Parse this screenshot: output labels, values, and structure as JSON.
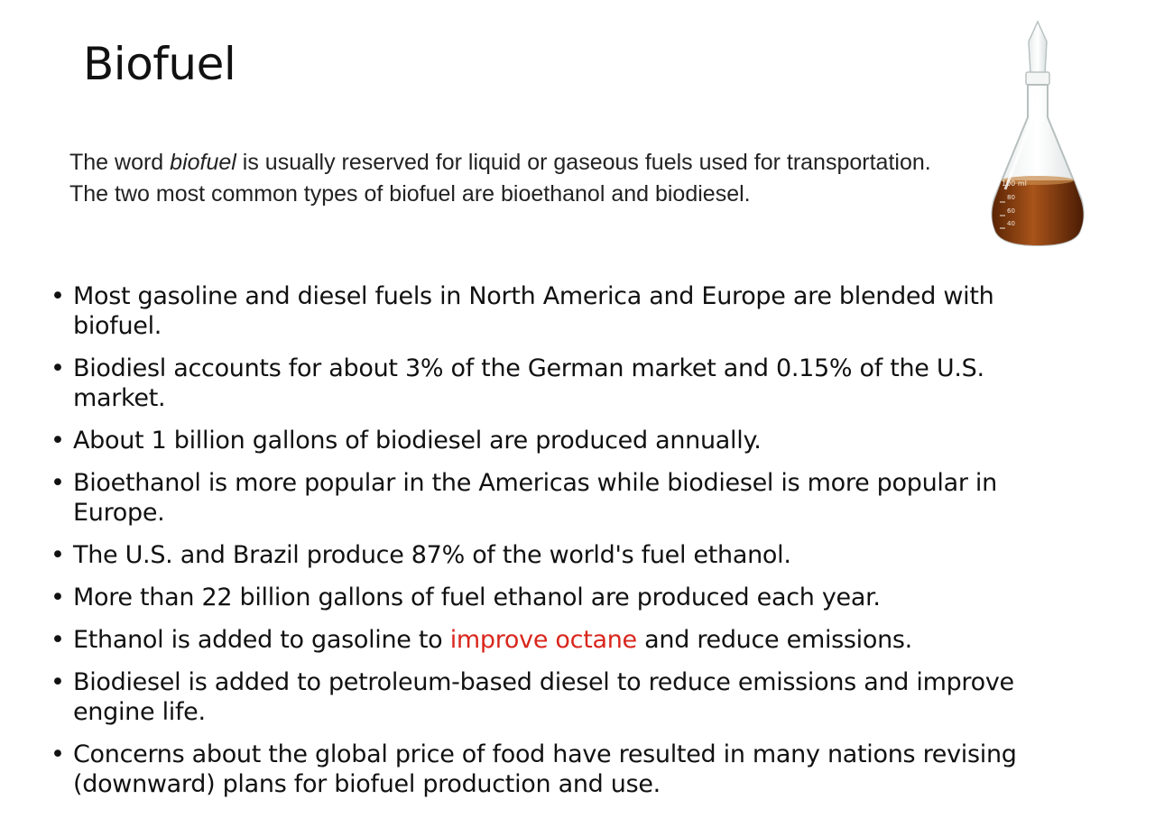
{
  "slide": {
    "title": "Biofuel",
    "intro": {
      "before": "The word ",
      "emph": "biofuel",
      "after": " is usually reserved for liquid or gaseous fuels used for transportation. The two most common types of biofuel are bioethanol and biodiesel."
    },
    "bullet_symbol": "•",
    "bullets": [
      "Most gasoline and diesel fuels in North America and Europe are blended with biofuel.",
      "Biodiesl accounts for about 3% of the German market and 0.15% of the U.S. market.",
      "About 1 billion gallons of biodiesel are produced annually.",
      "Bioethanol is more popular in the Americas while biodiesel is more popular in Europe.",
      "The U.S. and Brazil produce 87% of the world's fuel ethanol.",
      "More than 22 billion gallons of fuel ethanol are produced each year.",
      {
        "before": "Ethanol is added to gasoline to ",
        "highlight": "improve octane",
        "after": " and reduce emissions."
      },
      "Biodiesel is added to petroleum-based diesel to reduce emissions and improve engine life.",
      "Concerns about the global price of food have resulted in many nations revising (downward) plans for biofuel production and use."
    ],
    "highlight_color": "#d9261c",
    "flask": {
      "icon": "erlenmeyer-flask-icon",
      "liquid_color": "#8a3d0c",
      "markings": [
        "100 ml",
        "80",
        "60",
        "40"
      ]
    }
  }
}
